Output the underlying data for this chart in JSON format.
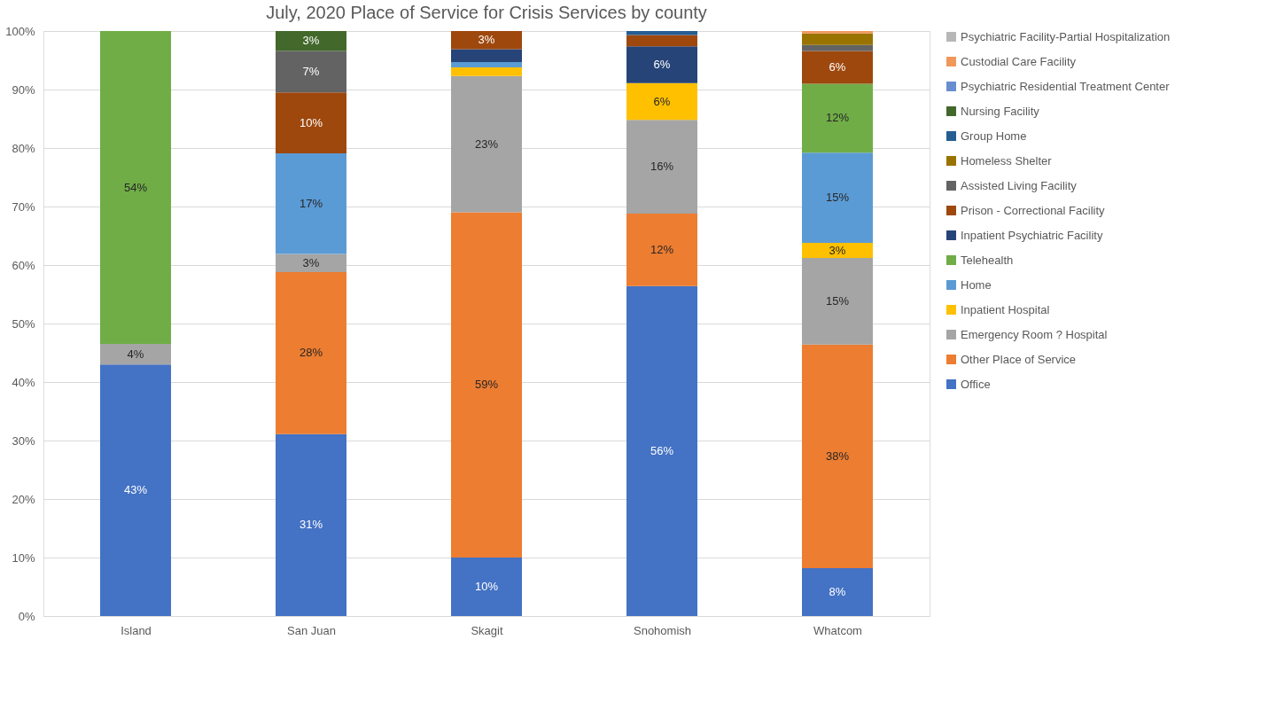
{
  "chart_data": {
    "type": "bar",
    "stacked": true,
    "title": "July, 2020 Place of Service for Crisis Services by county",
    "categories": [
      "Island",
      "San Juan",
      "Skagit",
      "Snohomish",
      "Whatcom"
    ],
    "ylim": [
      0,
      100
    ],
    "yticks": [
      {
        "value": 0,
        "label": "0%"
      },
      {
        "value": 10,
        "label": "10%"
      },
      {
        "value": 20,
        "label": "20%"
      },
      {
        "value": 30,
        "label": "30%"
      },
      {
        "value": 40,
        "label": "40%"
      },
      {
        "value": 50,
        "label": "50%"
      },
      {
        "value": 60,
        "label": "60%"
      },
      {
        "value": 70,
        "label": "70%"
      },
      {
        "value": 80,
        "label": "80%"
      },
      {
        "value": 90,
        "label": "90%"
      },
      {
        "value": 100,
        "label": "100%"
      }
    ],
    "grid": "y",
    "legend": "right",
    "series": [
      {
        "name": "Office",
        "color": "#4472c4",
        "values": [
          43,
          31.1,
          10,
          56.4,
          8.2
        ],
        "value_labels": [
          "43%",
          "31%",
          "10%",
          "56%",
          "8%"
        ]
      },
      {
        "name": "Other Place of Service",
        "color": "#ed7d31",
        "values": [
          0,
          27.7,
          59,
          12.4,
          38.2
        ],
        "value_labels": [
          null,
          "28%",
          "59%",
          "12%",
          "38%"
        ]
      },
      {
        "name": "Emergency Room ? Hospital",
        "color": "#a5a5a5",
        "values": [
          3.5,
          3.1,
          23.3,
          16,
          14.8
        ],
        "value_labels": [
          "4%",
          "3%",
          "23%",
          "16%",
          "15%"
        ]
      },
      {
        "name": "Inpatient Hospital",
        "color": "#ffc000",
        "values": [
          0,
          0,
          1.5,
          6.3,
          2.6
        ],
        "value_labels": [
          null,
          null,
          null,
          "6%",
          "3%"
        ]
      },
      {
        "name": "Home",
        "color": "#5b9bd5",
        "values": [
          0,
          17.2,
          0.9,
          0,
          15.4
        ],
        "value_labels": [
          null,
          "17%",
          null,
          null,
          "15%"
        ]
      },
      {
        "name": "Telehealth",
        "color": "#70ad47",
        "values": [
          53.5,
          0,
          0,
          0,
          11.8
        ],
        "value_labels": [
          "54%",
          null,
          null,
          null,
          "12%"
        ]
      },
      {
        "name": "Inpatient Psychiatric Facility",
        "color": "#264478",
        "values": [
          0,
          0,
          2.2,
          6.3,
          0
        ],
        "value_labels": [
          null,
          null,
          null,
          "6%",
          null
        ]
      },
      {
        "name": "Prison - Correctional Facility",
        "color": "#9e480e",
        "values": [
          0,
          10.4,
          3.1,
          1.9,
          5.6
        ],
        "value_labels": [
          null,
          "10%",
          "3%",
          null,
          "6%"
        ]
      },
      {
        "name": "Assisted Living Facility",
        "color": "#636363",
        "values": [
          0,
          7.1,
          0,
          0,
          1
        ],
        "value_labels": [
          null,
          "7%",
          null,
          null,
          null
        ]
      },
      {
        "name": "Homeless Shelter",
        "color": "#997300",
        "values": [
          0,
          0,
          0,
          0,
          2
        ]
      },
      {
        "name": "Group Home",
        "color": "#255e91",
        "values": [
          0,
          0,
          0,
          0.7,
          0
        ]
      },
      {
        "name": "Nursing Facility",
        "color": "#43682b",
        "values": [
          0,
          3.4,
          0,
          0,
          0
        ],
        "value_labels": [
          null,
          "3%",
          null,
          null,
          null
        ]
      },
      {
        "name": "Psychiatric Residential Treatment Center",
        "color": "#698ed0",
        "values": [
          0,
          0,
          0,
          0,
          0
        ]
      },
      {
        "name": "Custodial Care Facility",
        "color": "#f1975a",
        "values": [
          0,
          0,
          0,
          0,
          0.4
        ]
      },
      {
        "name": "Psychiatric Facility-Partial Hospitalization",
        "color": "#b7b7b7",
        "values": [
          0,
          0,
          0,
          0,
          0
        ]
      }
    ]
  }
}
